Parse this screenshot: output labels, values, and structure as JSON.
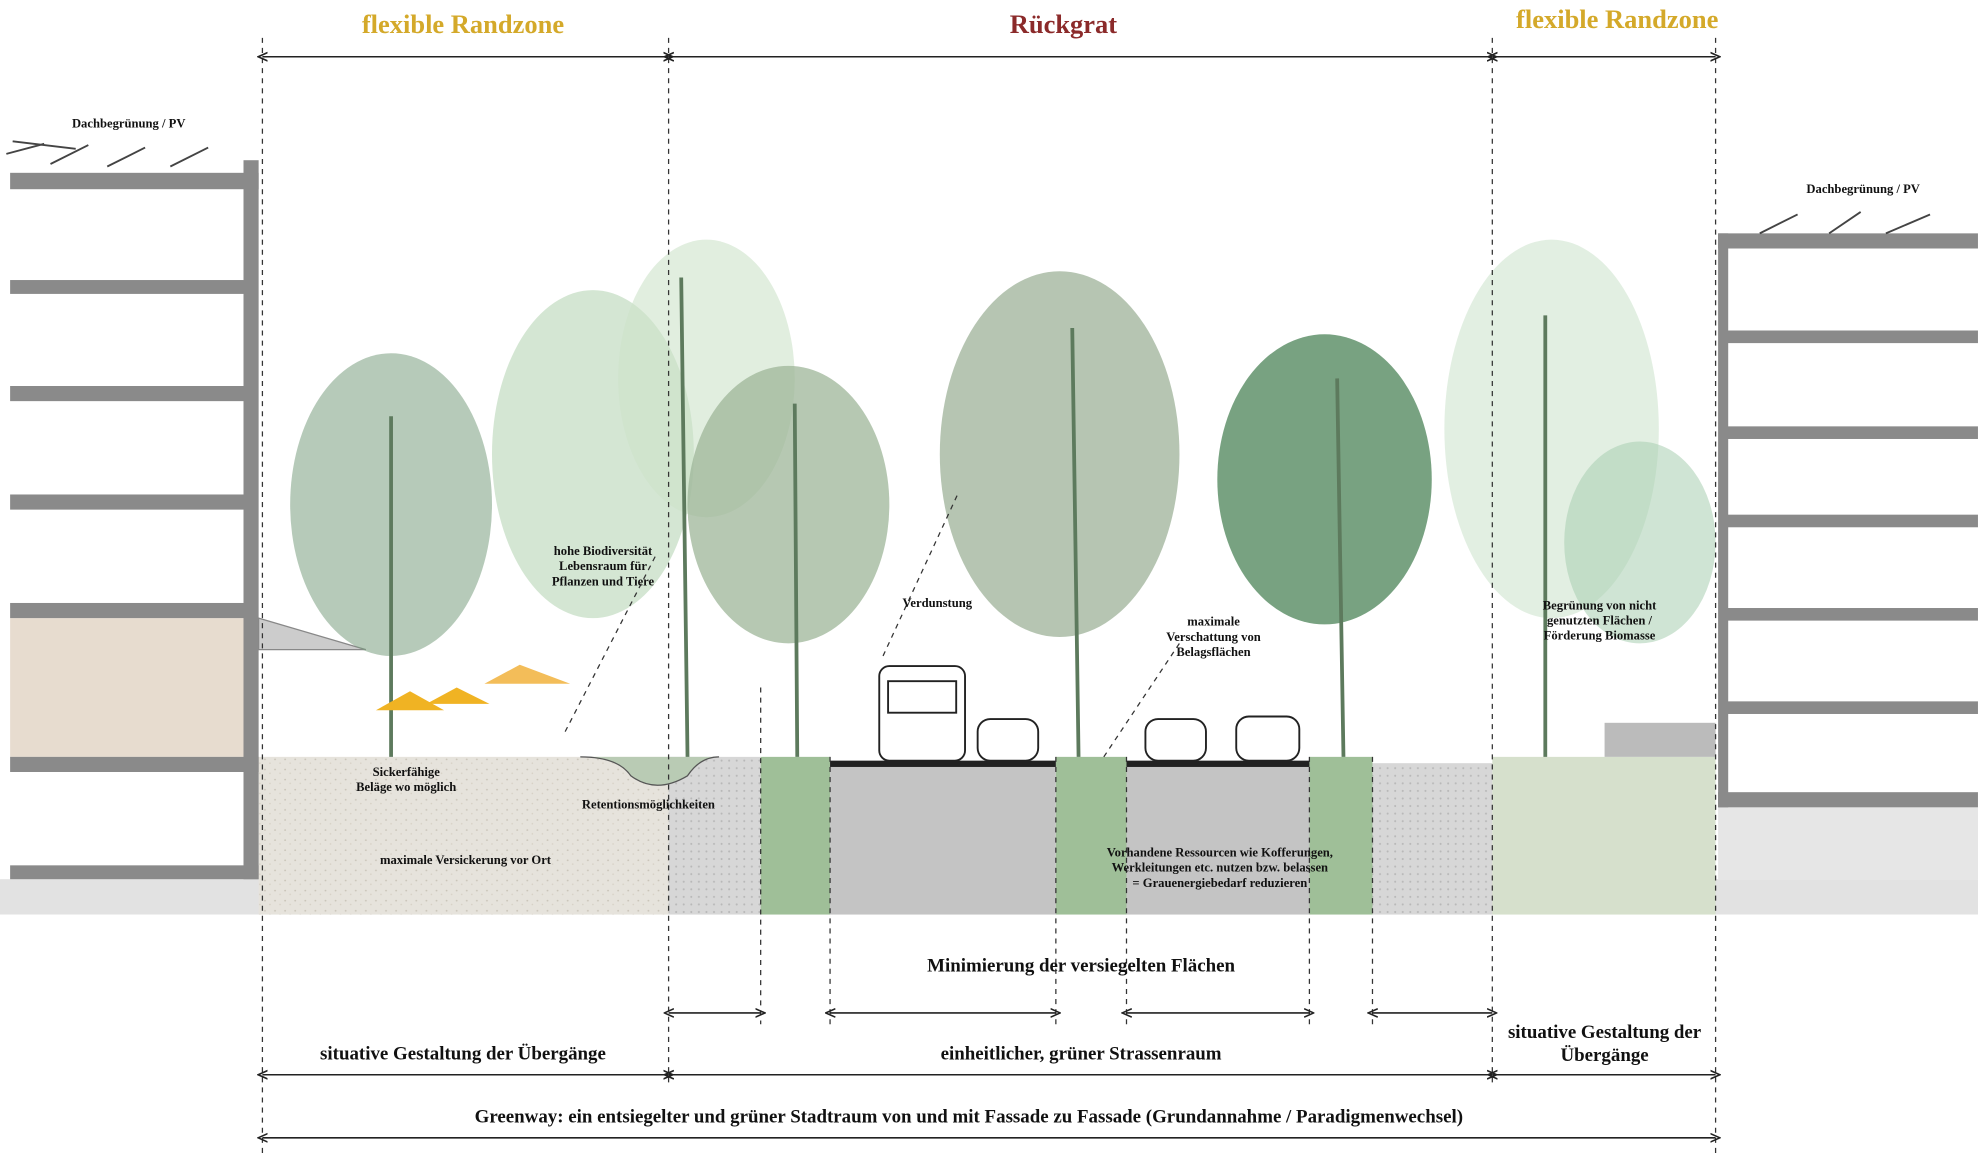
{
  "zones": {
    "left": "flexible Randzone",
    "center": "Rückgrat",
    "right": "flexible Randzone"
  },
  "annotations": {
    "roof_left": "Dachbegrünung / PV",
    "roof_right": "Dachbegrünung / PV",
    "biodiversity": [
      "hohe Biodiversität",
      "Lebensraum für",
      "Pflanzen und Tiere"
    ],
    "evaporation": "Verdunstung",
    "shading": [
      "maximale",
      "Verschattung von",
      "Belagsflächen"
    ],
    "greening": [
      "Begrünung von nicht",
      "genutzten Flächen /",
      "Förderung Biomasse"
    ],
    "permeable": [
      "Sickerfähige",
      "Beläge wo möglich"
    ],
    "retention": "Retentionsmöglichkeiten",
    "infiltration": "maximale Versickerung vor Ort",
    "resources": [
      "Vorhandene Ressourcen wie Kofferungen,",
      "Werkleitungen etc. nutzen bzw. belassen",
      "= Grauenergiebedarf reduzieren"
    ]
  },
  "dimensions": {
    "minimize": "Minimierung der versiegelten Flächen",
    "left_transition": "situative Gestaltung der Übergänge",
    "street": "einheitlicher, grüner Strassenraum",
    "right_transition": [
      "situative Gestaltung der",
      "Übergänge"
    ],
    "greenway": "Greenway: ein entsiegelter und grüner Stadtraum von und mit Fassade zu Fassade (Grundannahme / Paradigmenwechsel)"
  }
}
